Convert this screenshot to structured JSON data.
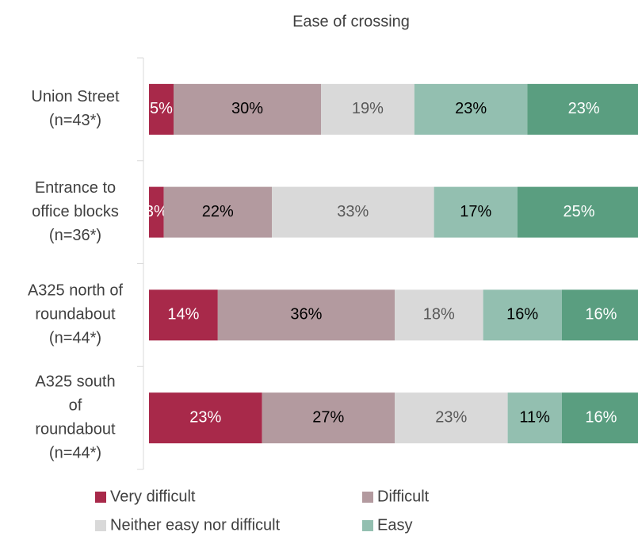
{
  "chart_data": {
    "type": "stacked-barh",
    "title": "Ease of crossing",
    "categories": [
      [
        "Union Street",
        "(n=43*)"
      ],
      [
        "Entrance to",
        "office blocks",
        "(n=36*)"
      ],
      [
        "A325 north of",
        "roundabout",
        "(n=44*)"
      ],
      [
        "A325 south",
        "of",
        "roundabout",
        "(n=44*)"
      ]
    ],
    "xlim": [
      0,
      100
    ],
    "series": [
      {
        "name": "Very difficult",
        "color": "#a8294a",
        "label_color": "#ffffff",
        "values": [
          5,
          3,
          14,
          23
        ],
        "value_labels": [
          "5%",
          "3%",
          "14%",
          "23%"
        ]
      },
      {
        "name": "Difficult",
        "color": "#b39a9f",
        "label_color": "#000000",
        "values": [
          30,
          22,
          36,
          27
        ],
        "value_labels": [
          "30%",
          "22%",
          "36%",
          "27%"
        ]
      },
      {
        "name": "Neither easy nor difficult",
        "color": "#d9d9d9",
        "label_color": "#595959",
        "values": [
          19,
          33,
          18,
          23
        ],
        "value_labels": [
          "19%",
          "33%",
          "18%",
          "23%"
        ]
      },
      {
        "name": "Easy",
        "color": "#93bfb0",
        "label_color": "#000000",
        "values": [
          23,
          17,
          16,
          11
        ],
        "value_labels": [
          "23%",
          "17%",
          "16%",
          "11%"
        ]
      },
      {
        "name": null,
        "color": "#5a9e80",
        "label_color": "#ffffff",
        "values": [
          23,
          25,
          16,
          16
        ],
        "value_labels": [
          "23%",
          "25%",
          "16%",
          "16%"
        ]
      }
    ]
  }
}
